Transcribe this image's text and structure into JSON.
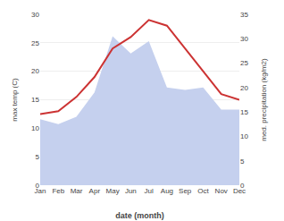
{
  "chart_data": {
    "type": "line",
    "xlabel": "date (month)",
    "ylabel": "max temp (C)",
    "y2label": "med. precipitation (kg/m2)",
    "categories": [
      "Jan",
      "Feb",
      "Mar",
      "Apr",
      "May",
      "Jun",
      "Jul",
      "Aug",
      "Sep",
      "Oct",
      "Nov",
      "Dec"
    ],
    "series": [
      {
        "type": "line",
        "color": "#cc3333",
        "values": [
          12.5,
          13.0,
          15.5,
          19.0,
          24.0,
          26.0,
          29.0,
          28.0,
          24.0,
          20.0,
          16.0,
          15.0
        ]
      },
      {
        "type": "area",
        "color": "#c5d0ee",
        "axis": "y2",
        "values": [
          13.5,
          12.5,
          14.0,
          19.0,
          30.5,
          27.0,
          29.5,
          20.0,
          19.5,
          20.0,
          15.5,
          15.5
        ]
      }
    ],
    "ylim": [
      0,
      30
    ],
    "yticks": [
      0,
      5,
      10,
      15,
      20,
      25,
      30
    ],
    "y2lim": [
      0,
      35
    ],
    "y2ticks": [
      0,
      5,
      10,
      15,
      20,
      25,
      30,
      35
    ],
    "grid": true
  }
}
